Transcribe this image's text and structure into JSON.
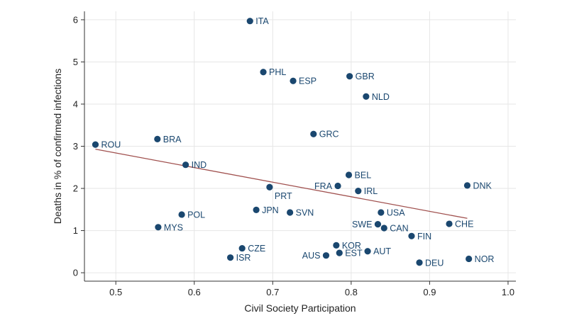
{
  "chart_data": {
    "type": "scatter",
    "title": "",
    "xlabel": "Civil Society Participation",
    "ylabel": "Deaths in % of confirmed infections",
    "xlim": [
      0.46,
      1.01
    ],
    "ylim": [
      -0.2,
      6.2
    ],
    "xticks": [
      "0.5",
      "0.6",
      "0.7",
      "0.8",
      "0.9",
      "1.0"
    ],
    "yticks": [
      "0",
      "1",
      "2",
      "3",
      "4",
      "5",
      "6"
    ],
    "grid": true,
    "legend": "none",
    "colors": {
      "points": "#1a476f",
      "fit_line": "#a0504e",
      "grid": "#e6e6e6",
      "axis": "#333333"
    },
    "points": [
      {
        "label": "ITA",
        "x": 0.671,
        "y": 5.97,
        "label_side": "right"
      },
      {
        "label": "PHL",
        "x": 0.688,
        "y": 4.76,
        "label_side": "right"
      },
      {
        "label": "ESP",
        "x": 0.726,
        "y": 4.55,
        "label_side": "right"
      },
      {
        "label": "GBR",
        "x": 0.798,
        "y": 4.66,
        "label_side": "right"
      },
      {
        "label": "NLD",
        "x": 0.819,
        "y": 4.18,
        "label_side": "right"
      },
      {
        "label": "GRC",
        "x": 0.752,
        "y": 3.29,
        "label_side": "right"
      },
      {
        "label": "ROU",
        "x": 0.474,
        "y": 3.04,
        "label_side": "right"
      },
      {
        "label": "BRA",
        "x": 0.553,
        "y": 3.17,
        "label_side": "right"
      },
      {
        "label": "IND",
        "x": 0.589,
        "y": 2.56,
        "label_side": "right"
      },
      {
        "label": "BEL",
        "x": 0.797,
        "y": 2.32,
        "label_side": "right"
      },
      {
        "label": "FRA",
        "x": 0.783,
        "y": 2.06,
        "label_side": "left"
      },
      {
        "label": "PRT",
        "x": 0.696,
        "y": 2.03,
        "label_side": "below"
      },
      {
        "label": "IRL",
        "x": 0.809,
        "y": 1.94,
        "label_side": "right"
      },
      {
        "label": "DNK",
        "x": 0.948,
        "y": 2.07,
        "label_side": "right"
      },
      {
        "label": "POL",
        "x": 0.584,
        "y": 1.38,
        "label_side": "right"
      },
      {
        "label": "JPN",
        "x": 0.679,
        "y": 1.49,
        "label_side": "right"
      },
      {
        "label": "SVN",
        "x": 0.722,
        "y": 1.43,
        "label_side": "right"
      },
      {
        "label": "USA",
        "x": 0.838,
        "y": 1.43,
        "label_side": "right"
      },
      {
        "label": "SWE",
        "x": 0.834,
        "y": 1.15,
        "label_side": "left"
      },
      {
        "label": "CAN",
        "x": 0.842,
        "y": 1.06,
        "label_side": "right"
      },
      {
        "label": "CHE",
        "x": 0.925,
        "y": 1.16,
        "label_side": "right"
      },
      {
        "label": "MYS",
        "x": 0.554,
        "y": 1.08,
        "label_side": "right"
      },
      {
        "label": "FIN",
        "x": 0.877,
        "y": 0.87,
        "label_side": "right"
      },
      {
        "label": "KOR",
        "x": 0.781,
        "y": 0.65,
        "label_side": "right"
      },
      {
        "label": "CZE",
        "x": 0.661,
        "y": 0.58,
        "label_side": "right"
      },
      {
        "label": "EST",
        "x": 0.785,
        "y": 0.47,
        "label_side": "right"
      },
      {
        "label": "AUT",
        "x": 0.821,
        "y": 0.51,
        "label_side": "right"
      },
      {
        "label": "AUS",
        "x": 0.768,
        "y": 0.41,
        "label_side": "left"
      },
      {
        "label": "ISR",
        "x": 0.646,
        "y": 0.36,
        "label_side": "right"
      },
      {
        "label": "DEU",
        "x": 0.887,
        "y": 0.24,
        "label_side": "right"
      },
      {
        "label": "NOR",
        "x": 0.95,
        "y": 0.33,
        "label_side": "right"
      }
    ],
    "fit_line": {
      "x1": 0.474,
      "y1": 2.93,
      "x2": 0.948,
      "y2": 1.29
    }
  }
}
